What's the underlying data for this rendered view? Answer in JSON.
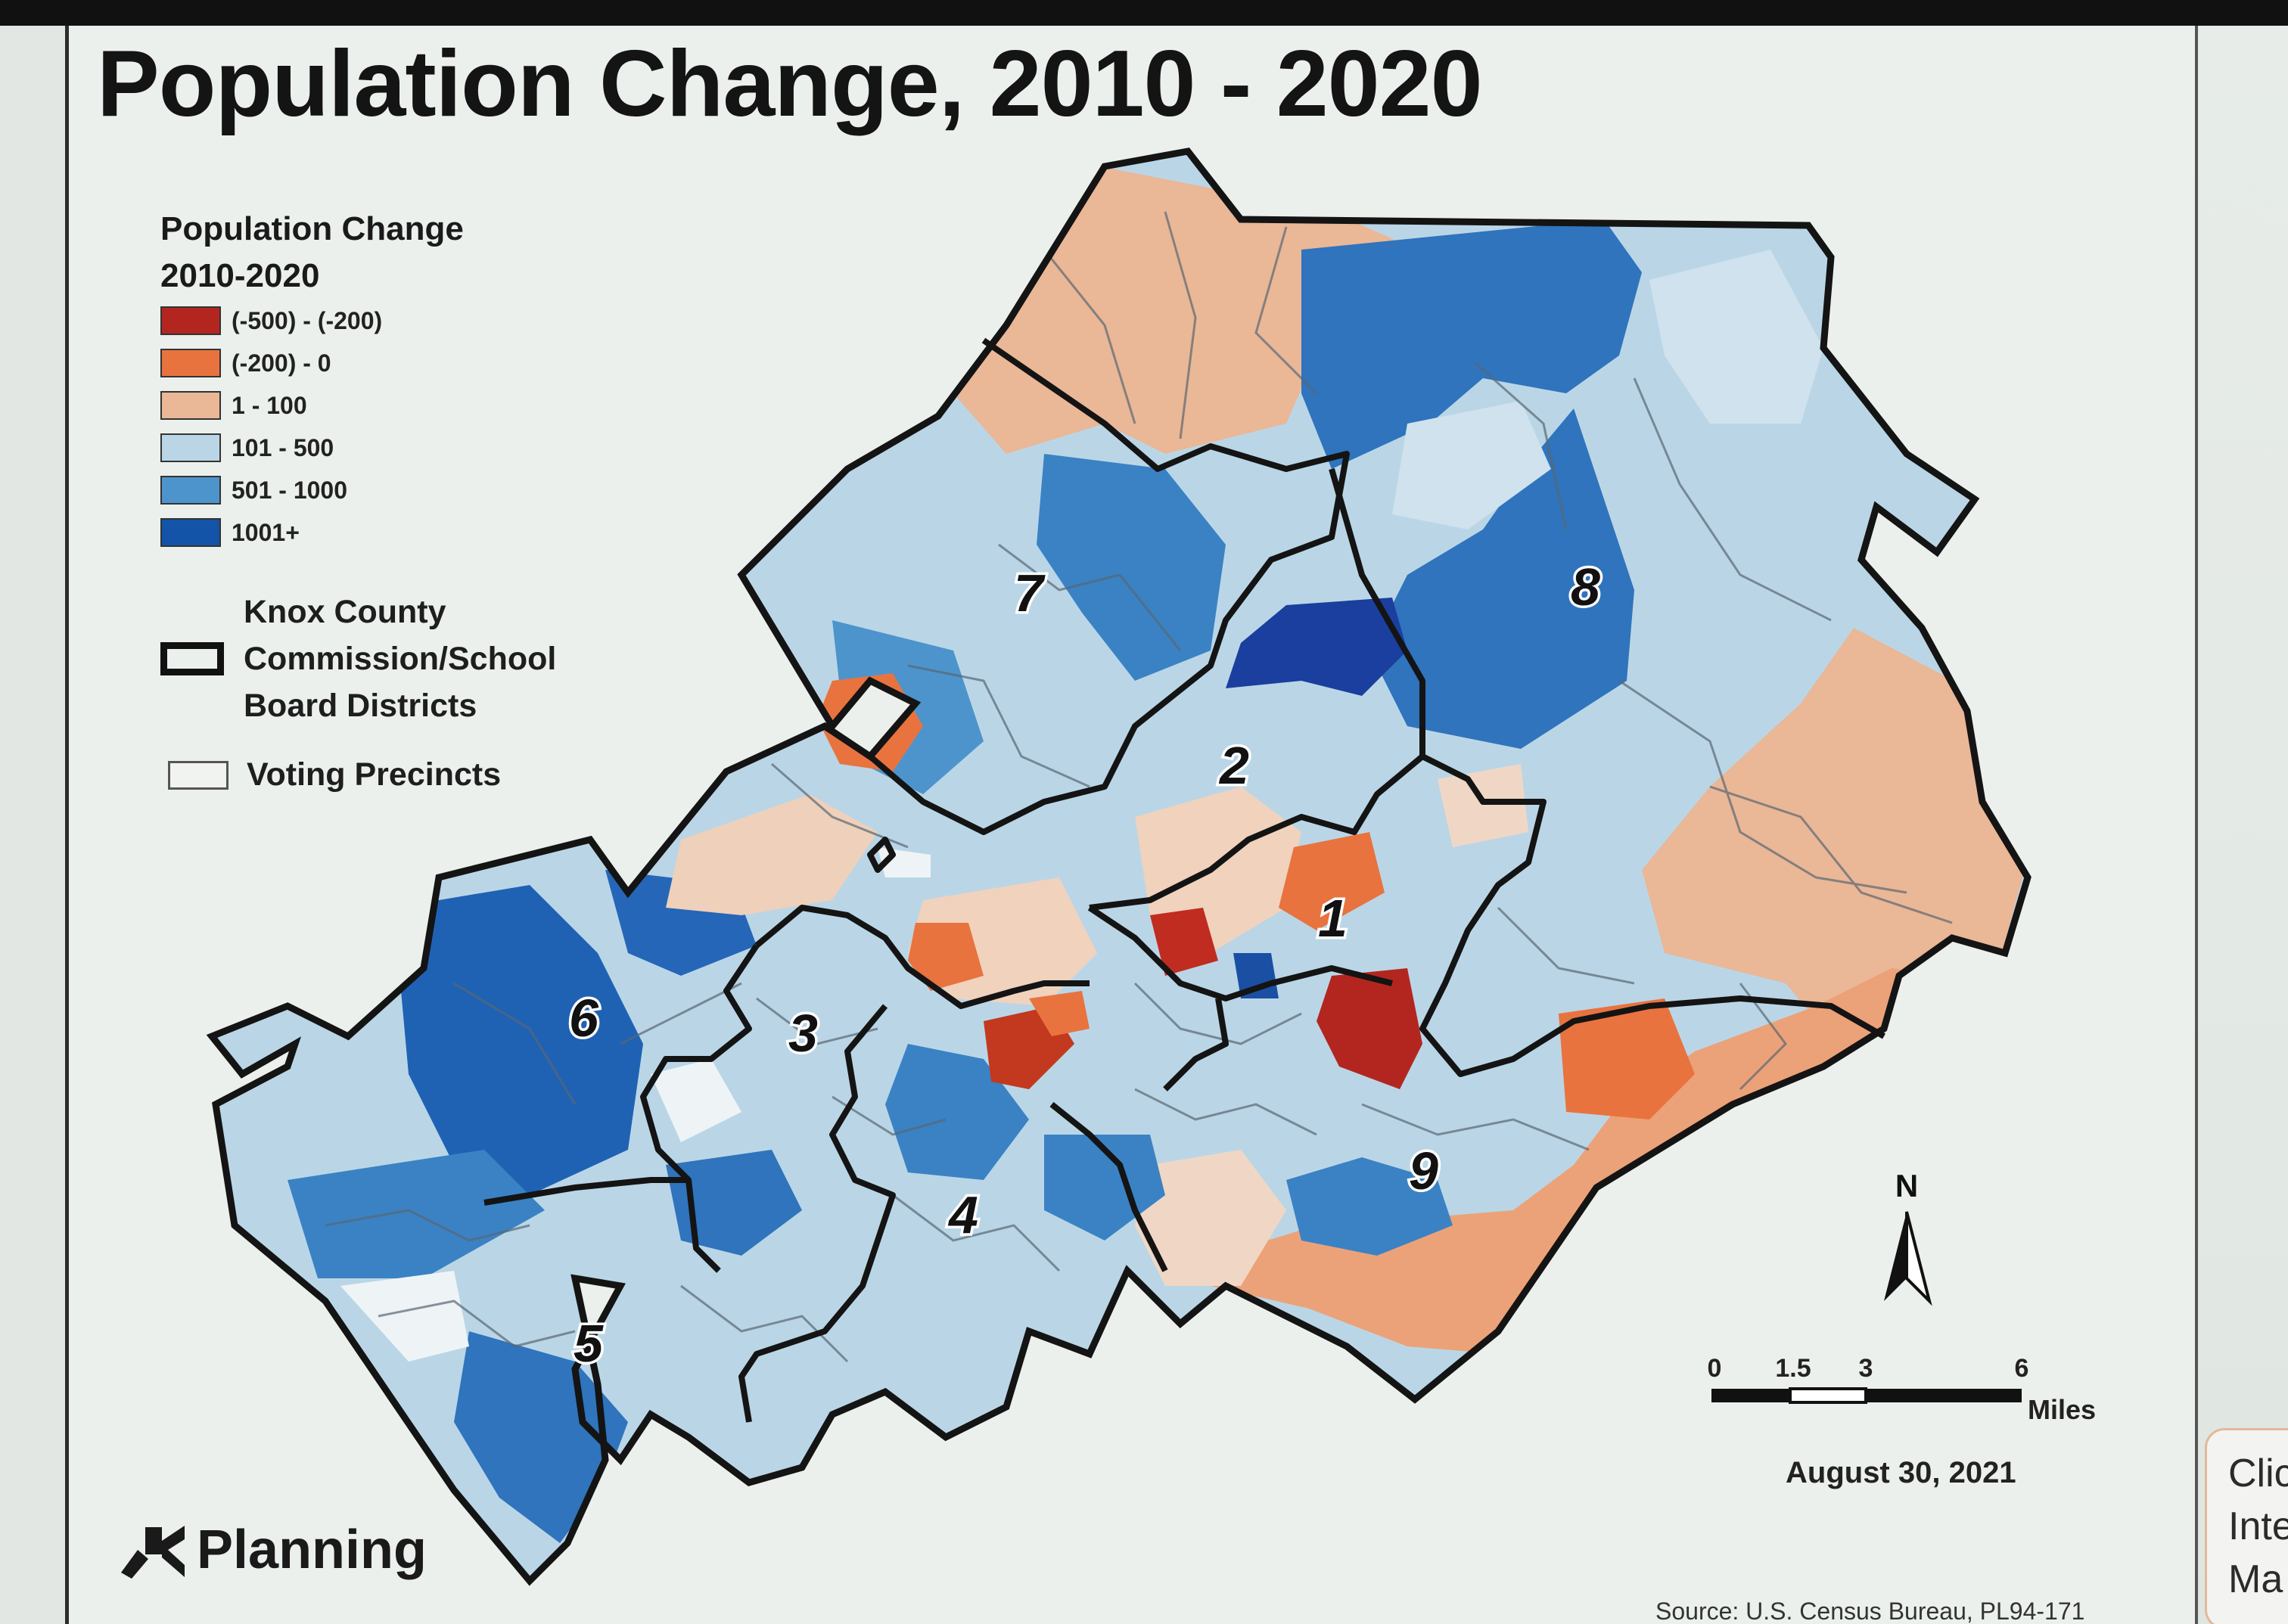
{
  "title": "Population Change, 2010 - 2020",
  "legend": {
    "title": "Population Change\n2010-2020",
    "classes": [
      {
        "label": "(-500) - (-200)",
        "color": "#b32620"
      },
      {
        "label": "(-200) - 0",
        "color": "#e8733f"
      },
      {
        "label": "1 - 100",
        "color": "#eab797"
      },
      {
        "label": "101 - 500",
        "color": "#bad6e6"
      },
      {
        "label": "501 - 1000",
        "color": "#4d94cd"
      },
      {
        "label": "1001+",
        "color": "#1454a8"
      }
    ],
    "district_label": "Knox County\nCommission/School\nBoard Districts",
    "precinct_label": "Voting Precincts"
  },
  "districts": [
    "1",
    "2",
    "3",
    "4",
    "5",
    "6",
    "7",
    "8",
    "9"
  ],
  "north_label": "N",
  "scale": {
    "ticks": [
      "0",
      "1.5",
      "3",
      "6"
    ],
    "unit": "Miles"
  },
  "date": "August 30, 2021",
  "logo": "Planning",
  "source": "Source: U.S. Census Bureau, PL94-171",
  "side_card": [
    "Clic",
    "Inte",
    "Ma"
  ]
}
